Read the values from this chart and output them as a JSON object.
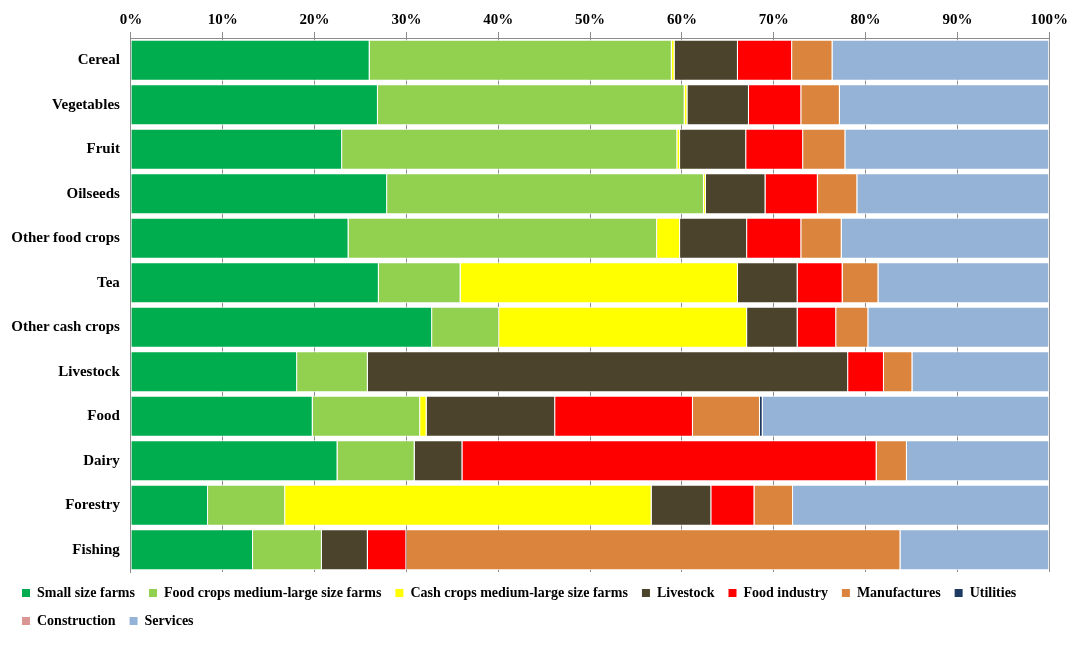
{
  "chart_data": {
    "type": "bar",
    "orientation": "horizontal",
    "stacked": true,
    "categories": [
      "Cereal",
      "Vegetables",
      "Fruit",
      "Oilseeds",
      "Other food crops",
      "Tea",
      "Other cash crops",
      "Livestock",
      "Food",
      "Dairy",
      "Forestry",
      "Fishing"
    ],
    "xlim": [
      0,
      100
    ],
    "xticks": [
      {
        "value": 0,
        "label": "0%"
      },
      {
        "value": 10,
        "label": "10%"
      },
      {
        "value": 20,
        "label": "20%"
      },
      {
        "value": 30,
        "label": "30%"
      },
      {
        "value": 40,
        "label": "40%"
      },
      {
        "value": 50,
        "label": "50%"
      },
      {
        "value": 60,
        "label": "60%"
      },
      {
        "value": 70,
        "label": "70%"
      },
      {
        "value": 80,
        "label": "80%"
      },
      {
        "value": 90,
        "label": "90%"
      },
      {
        "value": 100,
        "label": "100%"
      }
    ],
    "grid": "x",
    "legend": "bottom",
    "series": [
      {
        "name": "Small size farms",
        "color": "#00ad4e",
        "values": [
          26.0,
          26.9,
          23.0,
          27.9,
          23.7,
          27.0,
          32.8,
          18.1,
          19.8,
          22.5,
          8.4,
          13.3
        ]
      },
      {
        "name": "Food crops medium-large size farms",
        "color": "#92d050",
        "values": [
          32.9,
          33.4,
          36.5,
          34.5,
          33.6,
          8.9,
          7.3,
          7.7,
          11.7,
          8.4,
          8.4,
          7.5
        ]
      },
      {
        "name": "Cash crops medium-large size farms",
        "color": "#ffff00",
        "values": [
          0.3,
          0.3,
          0.3,
          0.2,
          2.5,
          30.2,
          27.0,
          0,
          0.7,
          0,
          39.9,
          0
        ]
      },
      {
        "name": "Livestock",
        "color": "#4b432c",
        "values": [
          6.9,
          6.7,
          7.2,
          6.5,
          7.3,
          6.5,
          5.5,
          52.3,
          14.0,
          5.2,
          6.5,
          5.0
        ]
      },
      {
        "name": "Food industry",
        "color": "#ff0000",
        "values": [
          5.9,
          5.7,
          6.2,
          5.7,
          5.9,
          4.9,
          4.2,
          3.9,
          15.0,
          45.1,
          4.7,
          4.2
        ]
      },
      {
        "name": "Manufactures",
        "color": "#db843d",
        "values": [
          4.4,
          4.2,
          4.6,
          4.3,
          4.4,
          3.9,
          3.5,
          3.1,
          7.3,
          3.3,
          4.2,
          53.8
        ]
      },
      {
        "name": "Utilities",
        "color": "#1f3a60",
        "values": [
          0,
          0,
          0,
          0,
          0,
          0,
          0,
          0,
          0.3,
          0,
          0,
          0
        ]
      },
      {
        "name": "Construction",
        "color": "#d99694",
        "values": [
          0,
          0,
          0,
          0,
          0,
          0,
          0,
          0,
          0,
          0,
          0,
          0
        ]
      },
      {
        "name": "Services",
        "color": "#95b3d7",
        "values": [
          23.6,
          22.8,
          22.2,
          20.9,
          22.6,
          18.6,
          19.7,
          14.9,
          31.2,
          15.5,
          27.9,
          16.2
        ]
      }
    ]
  }
}
